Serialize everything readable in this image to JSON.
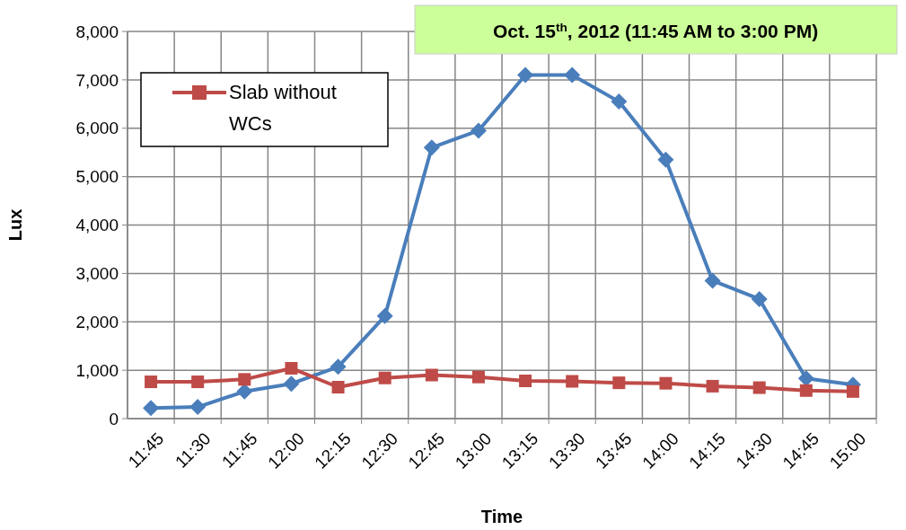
{
  "chart_data": {
    "type": "line",
    "title": "Oct. 15$^{th}$, 2012 (11:45 AM to 3:00 PM)",
    "xlabel": "Time",
    "ylabel": "Lux",
    "categories": [
      "11:45",
      "11:30",
      "11:45",
      "12:00",
      "12:15",
      "12:30",
      "12:45",
      "13:00",
      "13:15",
      "13:30",
      "13:45",
      "14:00",
      "14:15",
      "14:30",
      "14:45",
      "15:00"
    ],
    "series": [
      {
        "color": "#4a7ebb",
        "marker": "diamond",
        "values": [
          220,
          240,
          560,
          720,
          1070,
          2120,
          5600,
          5950,
          7100,
          7100,
          6550,
          5350,
          2850,
          2470,
          830,
          700
        ]
      },
      {
        "name": "Slab without WCs",
        "color": "#be4b48",
        "marker": "square",
        "values": [
          760,
          760,
          810,
          1040,
          650,
          840,
          900,
          860,
          780,
          770,
          740,
          730,
          670,
          640,
          580,
          560
        ]
      }
    ],
    "ylim": [
      0,
      8000
    ],
    "yticks": [
      {
        "value": 0,
        "label": "0"
      },
      {
        "value": 1000,
        "label": "1,000"
      },
      {
        "value": 2000,
        "label": "2,000"
      },
      {
        "value": 3000,
        "label": "3,000"
      },
      {
        "value": 4000,
        "label": "4,000"
      },
      {
        "value": 5000,
        "label": "5,000"
      },
      {
        "value": 6000,
        "label": "6,000"
      },
      {
        "value": 7000,
        "label": "7,000"
      },
      {
        "value": 8000,
        "label": "8,000"
      }
    ],
    "grid": true,
    "legend": "top left",
    "line_style": "solid"
  }
}
